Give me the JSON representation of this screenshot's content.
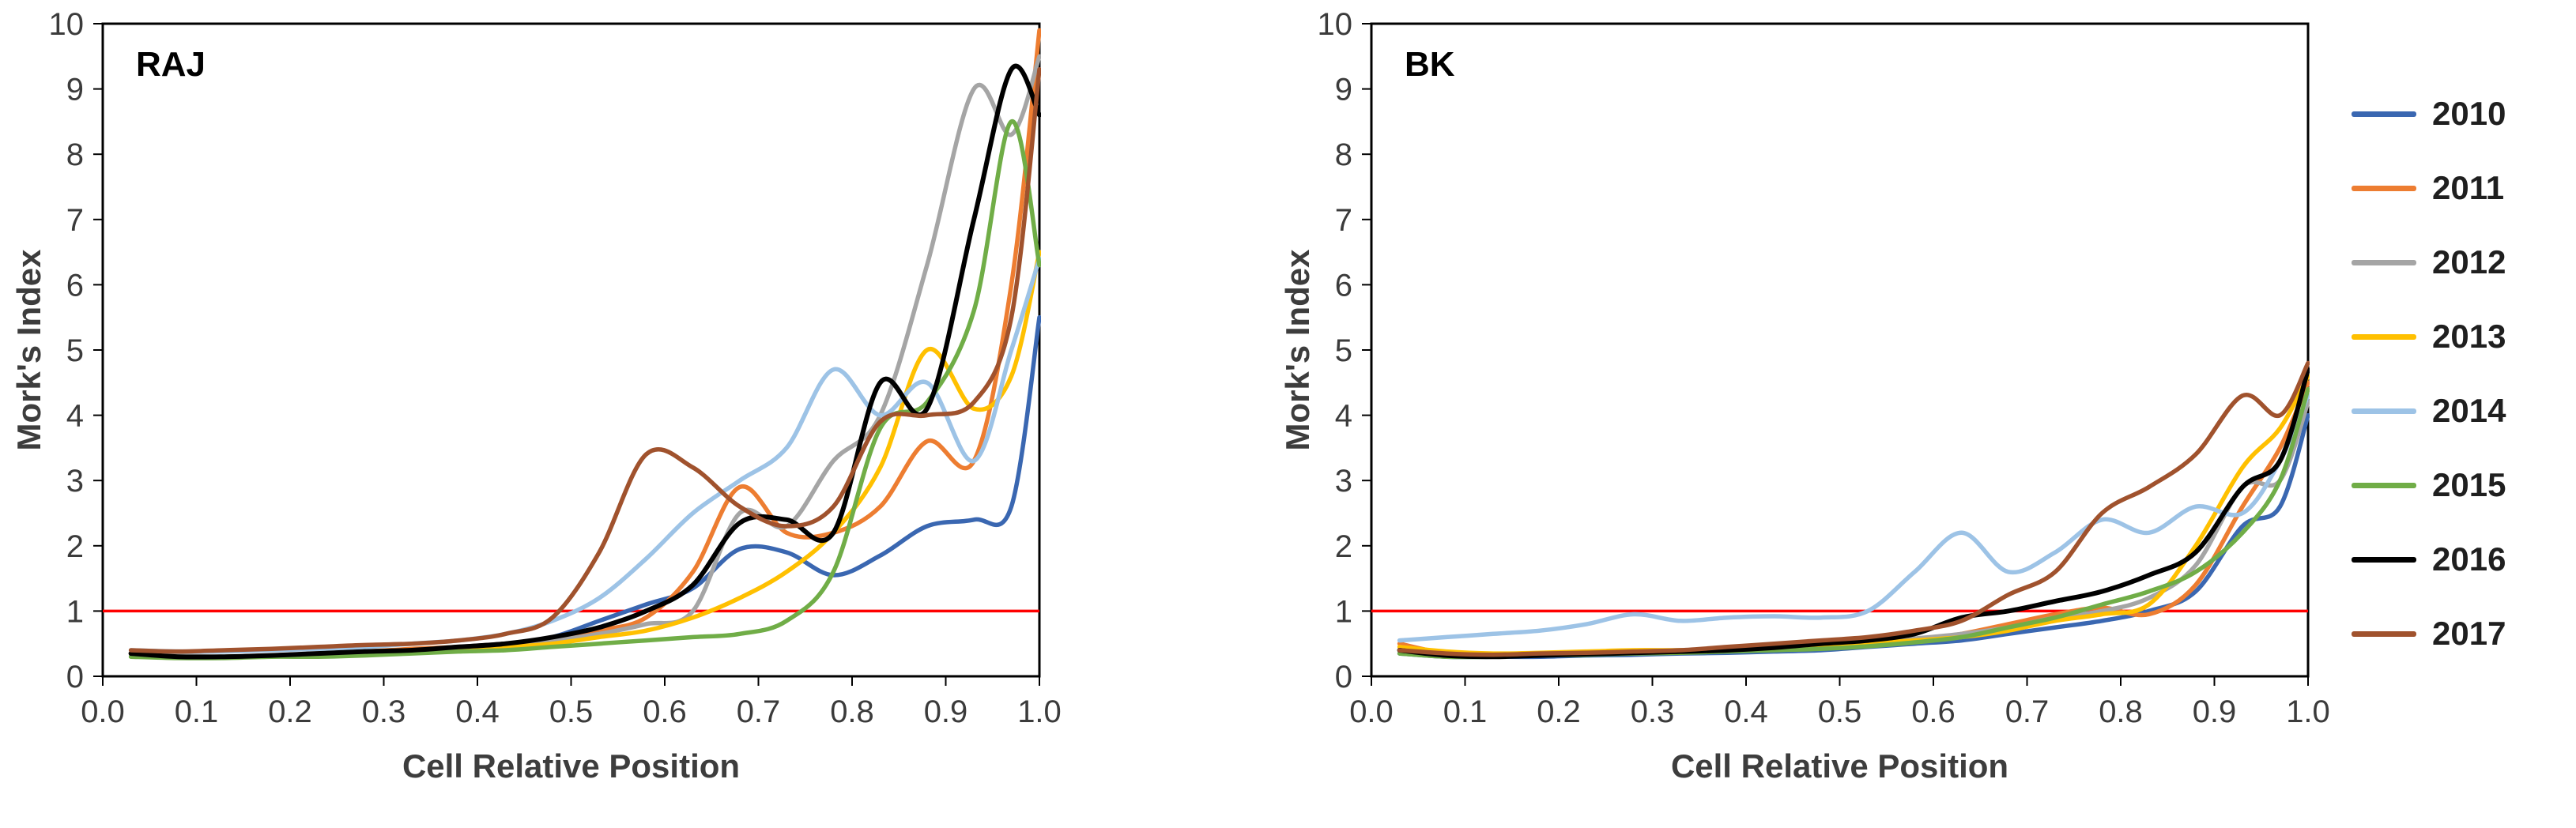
{
  "figure": {
    "background": "#ffffff"
  },
  "legend": {
    "position": "right",
    "items": [
      {
        "label": "2010",
        "color": "#3A67B1"
      },
      {
        "label": "2011",
        "color": "#ED7D31"
      },
      {
        "label": "2012",
        "color": "#A5A5A5"
      },
      {
        "label": "2013",
        "color": "#FFC000"
      },
      {
        "label": "2014",
        "color": "#9DC3E6"
      },
      {
        "label": "2015",
        "color": "#70AD47"
      },
      {
        "label": "2016",
        "color": "#000000"
      },
      {
        "label": "2017",
        "color": "#A0522D"
      }
    ]
  },
  "chart_data": [
    {
      "type": "line",
      "title": "RAJ",
      "xlabel": "Cell Relative Position",
      "ylabel": "Mork's Index",
      "xlim": [
        0,
        1
      ],
      "ylim": [
        0,
        10
      ],
      "xtick_step": 0.1,
      "ytick_step": 1,
      "grid": false,
      "reference_line": {
        "y": 1,
        "color": "#FF0000"
      },
      "x": [
        0.03,
        0.08,
        0.13,
        0.18,
        0.23,
        0.28,
        0.33,
        0.38,
        0.43,
        0.48,
        0.53,
        0.58,
        0.63,
        0.68,
        0.73,
        0.78,
        0.83,
        0.88,
        0.93,
        0.97,
        1.0
      ],
      "series": [
        {
          "name": "2010",
          "values": [
            0.35,
            0.3,
            0.3,
            0.32,
            0.35,
            0.38,
            0.4,
            0.45,
            0.5,
            0.6,
            0.85,
            1.1,
            1.35,
            1.95,
            1.9,
            1.55,
            1.85,
            2.3,
            2.4,
            2.6,
            5.5
          ]
        },
        {
          "name": "2011",
          "values": [
            0.35,
            0.3,
            0.3,
            0.32,
            0.35,
            0.38,
            0.42,
            0.45,
            0.5,
            0.55,
            0.7,
            0.9,
            1.6,
            2.9,
            2.2,
            2.2,
            2.6,
            3.6,
            3.3,
            6.0,
            9.9
          ]
        },
        {
          "name": "2012",
          "values": [
            0.35,
            0.32,
            0.3,
            0.32,
            0.35,
            0.38,
            0.4,
            0.45,
            0.5,
            0.55,
            0.65,
            0.8,
            1.0,
            2.5,
            2.3,
            3.3,
            4.0,
            6.3,
            9.0,
            8.3,
            9.5
          ]
        },
        {
          "name": "2013",
          "values": [
            0.35,
            0.3,
            0.3,
            0.32,
            0.35,
            0.38,
            0.4,
            0.42,
            0.45,
            0.5,
            0.6,
            0.7,
            0.9,
            1.2,
            1.6,
            2.2,
            3.2,
            5.0,
            4.1,
            4.6,
            6.5
          ]
        },
        {
          "name": "2014",
          "values": [
            0.4,
            0.38,
            0.38,
            0.4,
            0.42,
            0.45,
            0.5,
            0.55,
            0.65,
            0.85,
            1.2,
            1.8,
            2.5,
            3.0,
            3.5,
            4.7,
            4.0,
            4.5,
            3.3,
            5.0,
            6.4
          ]
        },
        {
          "name": "2015",
          "values": [
            0.3,
            0.28,
            0.28,
            0.3,
            0.3,
            0.32,
            0.35,
            0.38,
            0.4,
            0.45,
            0.5,
            0.55,
            0.6,
            0.65,
            0.85,
            1.6,
            3.8,
            4.2,
            5.6,
            8.5,
            6.3
          ]
        },
        {
          "name": "2016",
          "values": [
            0.35,
            0.3,
            0.3,
            0.32,
            0.35,
            0.38,
            0.4,
            0.45,
            0.5,
            0.6,
            0.75,
            1.0,
            1.4,
            2.35,
            2.4,
            2.2,
            4.5,
            4.1,
            7.0,
            9.3,
            8.6
          ]
        },
        {
          "name": "2017",
          "values": [
            0.4,
            0.38,
            0.4,
            0.42,
            0.45,
            0.48,
            0.5,
            0.55,
            0.65,
            0.9,
            1.9,
            3.4,
            3.2,
            2.6,
            2.3,
            2.6,
            3.9,
            4.0,
            4.2,
            5.5,
            9.3
          ]
        }
      ]
    },
    {
      "type": "line",
      "title": "BK",
      "xlabel": "Cell Relative Position",
      "ylabel": "Mork's Index",
      "xlim": [
        0,
        1
      ],
      "ylim": [
        0,
        10
      ],
      "xtick_step": 0.1,
      "ytick_step": 1,
      "grid": false,
      "reference_line": {
        "y": 1,
        "color": "#FF0000"
      },
      "x": [
        0.03,
        0.08,
        0.13,
        0.18,
        0.23,
        0.28,
        0.33,
        0.38,
        0.43,
        0.48,
        0.53,
        0.58,
        0.63,
        0.68,
        0.73,
        0.78,
        0.83,
        0.88,
        0.93,
        0.97,
        1.0
      ],
      "series": [
        {
          "name": "2010",
          "values": [
            0.35,
            0.3,
            0.3,
            0.3,
            0.32,
            0.33,
            0.35,
            0.36,
            0.38,
            0.4,
            0.45,
            0.5,
            0.55,
            0.65,
            0.75,
            0.85,
            1.0,
            1.3,
            2.3,
            2.6,
            4.0
          ]
        },
        {
          "name": "2011",
          "values": [
            0.5,
            0.35,
            0.33,
            0.35,
            0.36,
            0.38,
            0.4,
            0.42,
            0.44,
            0.46,
            0.5,
            0.55,
            0.65,
            0.8,
            0.95,
            1.05,
            0.95,
            1.4,
            2.6,
            3.5,
            4.5
          ]
        },
        {
          "name": "2012",
          "values": [
            0.4,
            0.35,
            0.33,
            0.35,
            0.36,
            0.38,
            0.4,
            0.42,
            0.45,
            0.48,
            0.52,
            0.58,
            0.65,
            0.75,
            0.9,
            1.0,
            1.2,
            1.7,
            2.9,
            3.0,
            4.2
          ]
        },
        {
          "name": "2013",
          "values": [
            0.45,
            0.38,
            0.35,
            0.36,
            0.38,
            0.4,
            0.4,
            0.42,
            0.44,
            0.46,
            0.5,
            0.55,
            0.6,
            0.7,
            0.85,
            0.95,
            1.1,
            2.0,
            3.2,
            3.8,
            4.6
          ]
        },
        {
          "name": "2014",
          "values": [
            0.55,
            0.6,
            0.65,
            0.7,
            0.8,
            0.95,
            0.85,
            0.9,
            0.92,
            0.9,
            1.0,
            1.6,
            2.2,
            1.6,
            1.9,
            2.4,
            2.2,
            2.6,
            2.5,
            3.3,
            4.3
          ]
        },
        {
          "name": "2015",
          "values": [
            0.35,
            0.3,
            0.3,
            0.32,
            0.33,
            0.35,
            0.36,
            0.38,
            0.4,
            0.42,
            0.46,
            0.52,
            0.6,
            0.75,
            0.9,
            1.1,
            1.3,
            1.6,
            2.2,
            3.0,
            4.4
          ]
        },
        {
          "name": "2016",
          "values": [
            0.4,
            0.32,
            0.3,
            0.32,
            0.34,
            0.36,
            0.38,
            0.4,
            0.44,
            0.5,
            0.55,
            0.65,
            0.9,
            1.0,
            1.15,
            1.3,
            1.55,
            1.9,
            2.9,
            3.3,
            4.7
          ]
        },
        {
          "name": "2017",
          "values": [
            0.4,
            0.35,
            0.33,
            0.35,
            0.36,
            0.38,
            0.4,
            0.45,
            0.5,
            0.55,
            0.6,
            0.7,
            0.85,
            1.25,
            1.6,
            2.5,
            2.9,
            3.4,
            4.3,
            4.0,
            4.8
          ]
        }
      ]
    }
  ]
}
